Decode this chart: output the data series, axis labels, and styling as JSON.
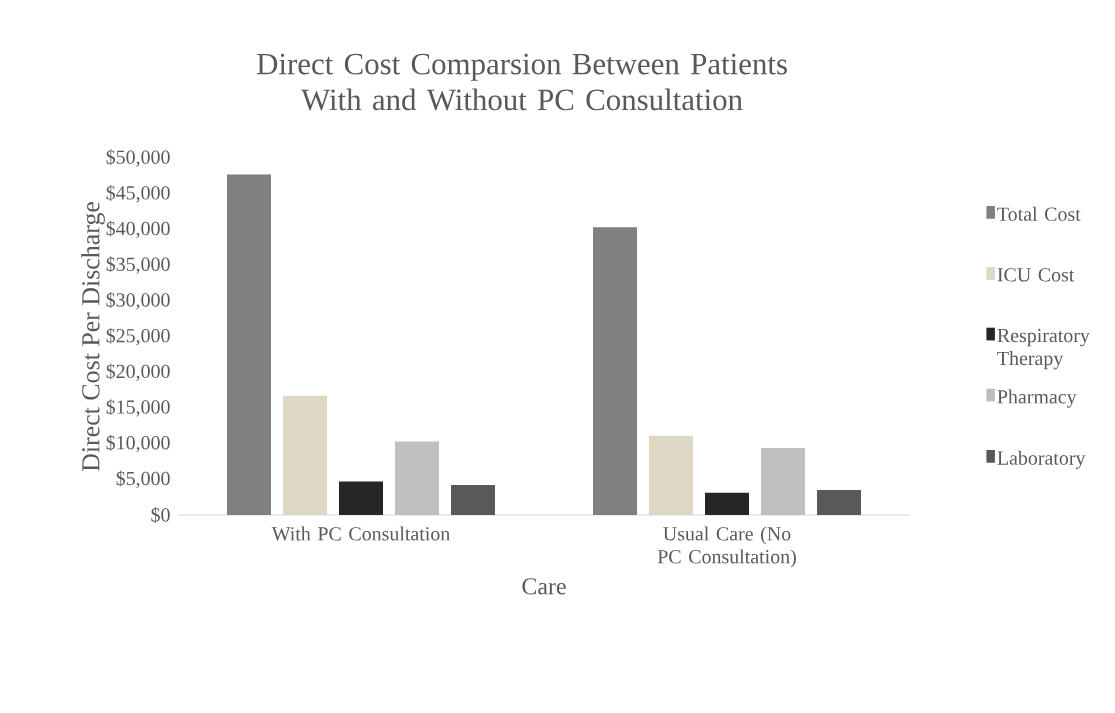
{
  "chart_data": {
    "type": "bar",
    "title": "Direct Cost Comparsion Between Patients With and Without PC Consultation",
    "xlabel": "Care",
    "ylabel": "Direct Cost Per Discharge",
    "categories": [
      "With PC Consultation",
      "Usual Care (No PC Consultation)"
    ],
    "series": [
      {
        "name": "Total Cost",
        "color": "#808080",
        "values": [
          47700,
          40300
        ]
      },
      {
        "name": "ICU Cost",
        "color": "#ddd8c4",
        "values": [
          16700,
          11100
        ]
      },
      {
        "name": "Respiratory Therapy",
        "color": "#262626",
        "values": [
          4700,
          3100
        ]
      },
      {
        "name": "Pharmacy",
        "color": "#bfbfbf",
        "values": [
          10300,
          9400
        ]
      },
      {
        "name": "Laboratory",
        "color": "#595959",
        "values": [
          4200,
          3500
        ]
      }
    ],
    "ylim": [
      0,
      50000
    ],
    "yticks": [
      {
        "value": 0,
        "label": "$0"
      },
      {
        "value": 5000,
        "label": "$5,000"
      },
      {
        "value": 10000,
        "label": "$10,000"
      },
      {
        "value": 15000,
        "label": "$15,000"
      },
      {
        "value": 20000,
        "label": "$20,000"
      },
      {
        "value": 25000,
        "label": "$25,000"
      },
      {
        "value": 30000,
        "label": "$30,000"
      },
      {
        "value": 35000,
        "label": "$35,000"
      },
      {
        "value": 40000,
        "label": "$40,000"
      },
      {
        "value": 45000,
        "label": "$45,000"
      },
      {
        "value": 50000,
        "label": "$50,000"
      }
    ],
    "grid": false,
    "legend": "right"
  }
}
